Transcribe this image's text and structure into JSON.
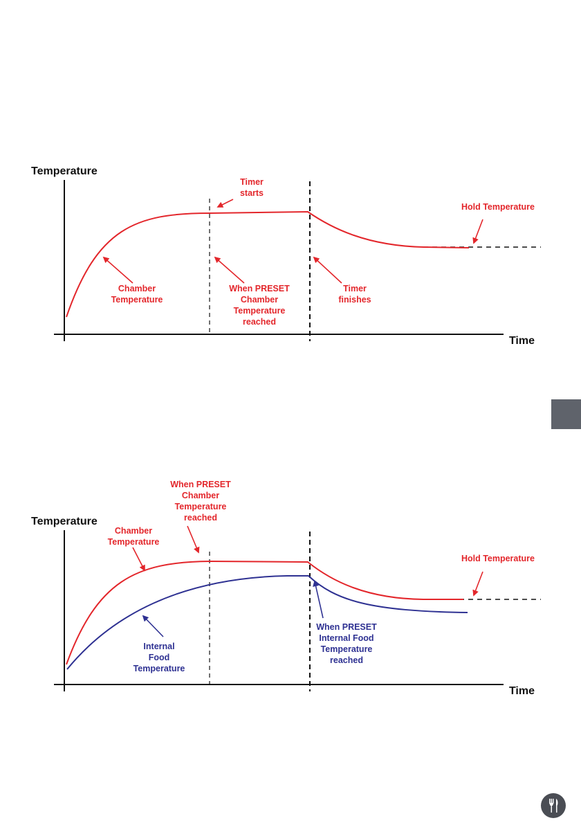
{
  "colors": {
    "chamber": "#e3262b",
    "food": "#2e3192",
    "axis": "#111111",
    "tab": "#5f636b",
    "badge": "#4a4d54"
  },
  "diagram1": {
    "y_axis_label": "Temperature",
    "x_axis_label": "Time",
    "labels": {
      "timer_starts": [
        "Timer",
        "starts"
      ],
      "hold_temperature": [
        "Hold Temperature"
      ],
      "chamber_temperature": [
        "Chamber",
        "Temperature"
      ],
      "preset_reached": [
        "When PRESET",
        "Chamber",
        "Temperature",
        "reached"
      ],
      "timer_finishes": [
        "Timer",
        "finishes"
      ]
    }
  },
  "diagram2": {
    "y_axis_label": "Temperature",
    "x_axis_label": "Time",
    "labels": {
      "preset_reached": [
        "When PRESET",
        "Chamber",
        "Temperature",
        "reached"
      ],
      "chamber_temperature": [
        "Chamber",
        "Temperature"
      ],
      "hold_temperature": [
        "Hold Temperature"
      ],
      "internal_food": [
        "Internal",
        "Food",
        "Temperature"
      ],
      "preset_food_reached": [
        "When PRESET",
        "Internal Food",
        "Temperature",
        "reached"
      ]
    }
  },
  "side_tab": {
    "icon": "section-tab"
  },
  "badge": {
    "icon": "cutlery-icon"
  }
}
